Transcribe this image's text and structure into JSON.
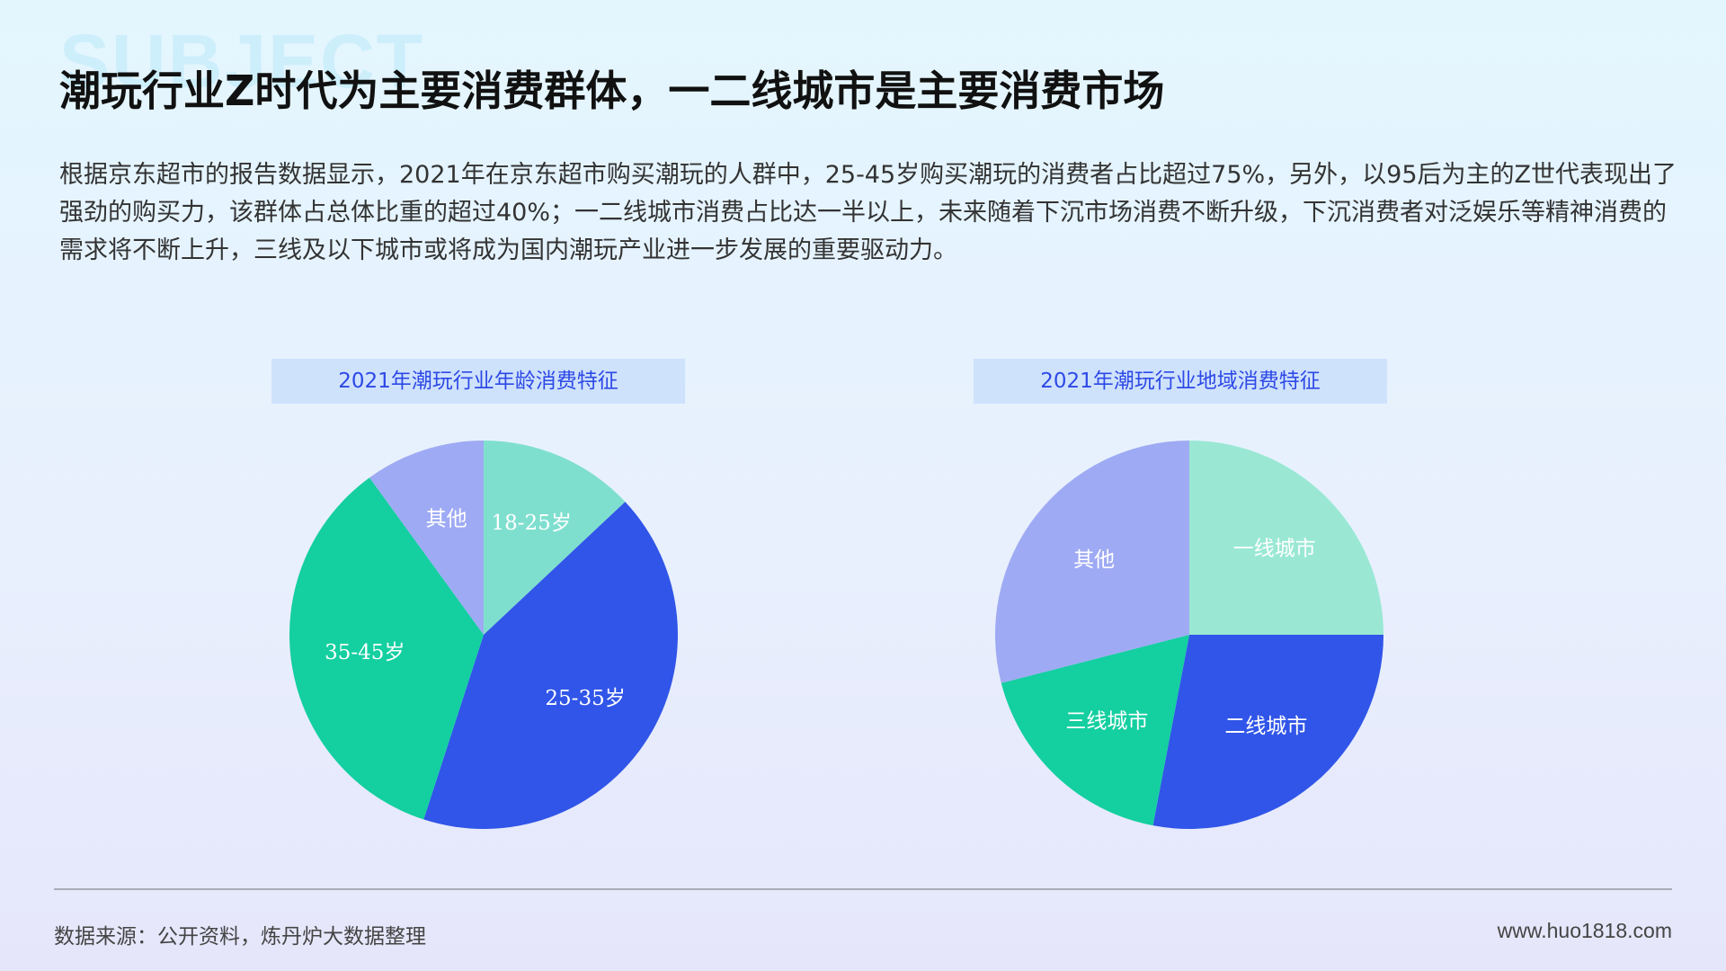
{
  "watermark": "SUBJECT",
  "title": "潮玩行业Z时代为主要消费群体，一二线城市是主要消费市场",
  "description": "根据京东超市的报告数据显示，2021年在京东超市购买潮玩的人群中，25-45岁购买潮玩的消费者占比超过75%，另外，以95后为主的Z世代表现出了强劲的购买力，该群体占总体比重的超过40%；一二线城市消费占比达一半以上，未来随着下沉市场消费不断升级，下沉消费者对泛娱乐等精神消费的需求将不断上升，三线及以下城市或将成为国内潮玩产业进一步发展的重要驱动力。",
  "footer": {
    "source": "数据来源：公开资料，炼丹炉大数据整理",
    "website": "www.huo1818.com"
  },
  "chart_data": [
    {
      "type": "pie",
      "title": "2021年潮玩行业年龄消费特征",
      "categories": [
        "18-25岁",
        "25-35岁",
        "35-45岁",
        "其他"
      ],
      "values": [
        13,
        42,
        35,
        10
      ],
      "colors": [
        "#7fdfcf",
        "#3055e8",
        "#14cfa0",
        "#9eaaf3"
      ]
    },
    {
      "type": "pie",
      "title": "2021年潮玩行业地域消费特征",
      "categories": [
        "一线城市",
        "二线城市",
        "三线城市",
        "其他"
      ],
      "values": [
        25,
        28,
        18,
        29
      ],
      "colors": [
        "#9ae8d4",
        "#3055e8",
        "#14cfa0",
        "#9eaaf3"
      ]
    }
  ]
}
